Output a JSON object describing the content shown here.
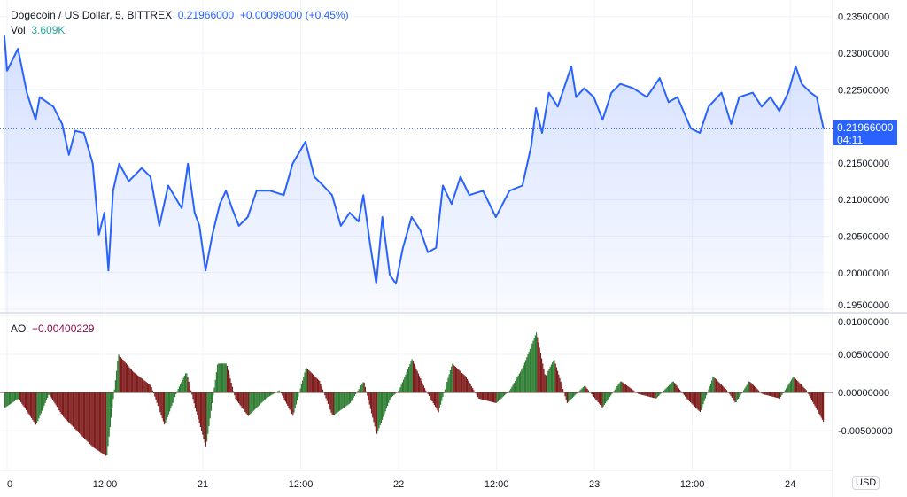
{
  "header": {
    "symbol": "Dogecoin / US Dollar, 5, BITTREX",
    "price": "0.21966000",
    "change": "+0.00098000 (+0.45%)",
    "vol_label": "Vol",
    "vol_value": "3.609K"
  },
  "currency": "USD",
  "last_price_tag": {
    "price": "0.21966000",
    "countdown": "04:11"
  },
  "ao": {
    "label": "AO",
    "value": "−0.00400229"
  },
  "colors": {
    "line": "#2962ff",
    "ao_up": "#2e7d32",
    "ao_down": "#7f1d1d"
  },
  "chart_data": [
    {
      "type": "line",
      "title": "Dogecoin / US Dollar, 5, BITTREX",
      "ylim": [
        0.195,
        0.236
      ],
      "y_ticks": [
        "0.23500000",
        "0.23000000",
        "0.22500000",
        "0.21500000",
        "0.21000000",
        "0.20500000",
        "0.20000000",
        "0.19500000"
      ],
      "x_ticks": [
        "0",
        "12:00",
        "21",
        "12:00",
        "22",
        "12:00",
        "23",
        "12:00",
        "24"
      ],
      "points": [
        [
          "19 23:40",
          0.2324
        ],
        [
          "20 00:00",
          0.2276
        ],
        [
          "20 01:20",
          0.2306
        ],
        [
          "20 02:25",
          0.2246
        ],
        [
          "20 03:30",
          0.2209
        ],
        [
          "20 04:00",
          0.224
        ],
        [
          "20 05:40",
          0.2227
        ],
        [
          "20 06:45",
          0.2203
        ],
        [
          "20 07:35",
          0.2161
        ],
        [
          "20 08:20",
          0.2194
        ],
        [
          "20 09:25",
          0.2191
        ],
        [
          "20 10:30",
          0.2149
        ],
        [
          "20 11:15",
          0.2052
        ],
        [
          "20 11:55",
          0.2082
        ],
        [
          "20 12:25",
          0.2003
        ],
        [
          "20 13:00",
          0.2112
        ],
        [
          "20 13:45",
          0.2149
        ],
        [
          "20 14:55",
          0.2125
        ],
        [
          "20 16:30",
          0.2143
        ],
        [
          "20 17:35",
          0.2131
        ],
        [
          "20 18:40",
          0.2064
        ],
        [
          "20 19:45",
          0.2119
        ],
        [
          "20 21:25",
          0.2088
        ],
        [
          "20 22:10",
          0.2149
        ],
        [
          "20 23:00",
          0.2082
        ],
        [
          "20 23:35",
          0.2064
        ],
        [
          "21 00:20",
          0.2003
        ],
        [
          "21 01:10",
          0.2052
        ],
        [
          "21 02:05",
          0.2094
        ],
        [
          "21 02:50",
          0.2112
        ],
        [
          "21 03:35",
          0.2088
        ],
        [
          "21 04:25",
          0.2064
        ],
        [
          "21 05:30",
          0.2076
        ],
        [
          "21 06:35",
          0.2112
        ],
        [
          "21 08:15",
          0.2112
        ],
        [
          "21 09:55",
          0.2106
        ],
        [
          "21 11:00",
          0.2149
        ],
        [
          "21 12:35",
          0.2179
        ],
        [
          "21 13:40",
          0.2131
        ],
        [
          "21 14:45",
          0.2119
        ],
        [
          "21 15:50",
          0.2106
        ],
        [
          "21 16:55",
          0.2064
        ],
        [
          "21 18:00",
          0.2082
        ],
        [
          "21 19:05",
          0.207
        ],
        [
          "21 19:40",
          0.2106
        ],
        [
          "21 20:30",
          0.204
        ],
        [
          "21 21:15",
          0.1985
        ],
        [
          "21 22:00",
          0.2076
        ],
        [
          "21 22:55",
          0.1997
        ],
        [
          "21 23:40",
          0.1985
        ],
        [
          "22 00:30",
          0.2033
        ],
        [
          "22 01:35",
          0.2076
        ],
        [
          "22 02:40",
          0.2058
        ],
        [
          "22 03:35",
          0.2028
        ],
        [
          "22 04:35",
          0.2034
        ],
        [
          "22 05:25",
          0.2119
        ],
        [
          "22 06:30",
          0.2094
        ],
        [
          "22 07:35",
          0.2131
        ],
        [
          "22 08:40",
          0.2106
        ],
        [
          "22 10:20",
          0.2112
        ],
        [
          "22 11:55",
          0.2076
        ],
        [
          "22 13:35",
          0.2112
        ],
        [
          "22 15:10",
          0.2119
        ],
        [
          "22 16:15",
          0.2173
        ],
        [
          "22 16:50",
          0.2225
        ],
        [
          "22 17:35",
          0.2191
        ],
        [
          "22 18:25",
          0.2246
        ],
        [
          "22 19:30",
          0.2227
        ],
        [
          "22 21:10",
          0.2282
        ],
        [
          "22 21:45",
          0.224
        ],
        [
          "22 22:45",
          0.2252
        ],
        [
          "22 23:55",
          0.224
        ],
        [
          "23 01:00",
          0.2209
        ],
        [
          "23 02:05",
          0.2246
        ],
        [
          "23 03:10",
          0.2258
        ],
        [
          "23 04:45",
          0.2252
        ],
        [
          "23 06:25",
          0.224
        ],
        [
          "23 08:00",
          0.2266
        ],
        [
          "23 09:05",
          0.2233
        ],
        [
          "23 10:10",
          0.224
        ],
        [
          "23 11:50",
          0.2197
        ],
        [
          "23 12:55",
          0.2191
        ],
        [
          "23 14:00",
          0.2227
        ],
        [
          "23 15:35",
          0.2246
        ],
        [
          "23 16:45",
          0.2203
        ],
        [
          "23 17:45",
          0.224
        ],
        [
          "23 19:25",
          0.2246
        ],
        [
          "23 20:30",
          0.2227
        ],
        [
          "23 21:35",
          0.224
        ],
        [
          "23 22:40",
          0.2221
        ],
        [
          "23 23:45",
          0.2246
        ],
        [
          "24 00:40",
          0.2282
        ],
        [
          "24 01:25",
          0.2258
        ],
        [
          "24 02:30",
          0.2246
        ],
        [
          "24 03:15",
          0.224
        ],
        [
          "24 04:05",
          0.21966
        ]
      ]
    },
    {
      "type": "bar",
      "title": "AO",
      "ylim": [
        -0.0095,
        0.0105
      ],
      "y_ticks": [
        "0.01000000",
        "0.00500000",
        "0.00000000",
        "-0.00500000"
      ],
      "points": [
        [
          "19 23:40",
          -0.002
        ],
        [
          "20 01:20",
          -0.0008
        ],
        [
          "20 03:30",
          -0.0043
        ],
        [
          "20 05:05",
          -0.0002
        ],
        [
          "20 06:45",
          -0.0031
        ],
        [
          "20 08:55",
          -0.0055
        ],
        [
          "20 10:30",
          -0.0072
        ],
        [
          "20 12:10",
          -0.0084
        ],
        [
          "20 13:35",
          0.005
        ],
        [
          "20 15:25",
          0.0027
        ],
        [
          "20 17:35",
          0.0009
        ],
        [
          "20 19:15",
          -0.0043
        ],
        [
          "20 20:50",
          0.0003
        ],
        [
          "20 21:55",
          0.0027
        ],
        [
          "20 23:00",
          -0.002
        ],
        [
          "21 00:20",
          -0.0072
        ],
        [
          "21 01:45",
          0.0038
        ],
        [
          "21 02:50",
          0.0038
        ],
        [
          "21 03:55",
          -0.0008
        ],
        [
          "21 05:30",
          -0.0031
        ],
        [
          "21 07:40",
          -0.0008
        ],
        [
          "21 09:20",
          0.0003
        ],
        [
          "21 11:00",
          -0.0031
        ],
        [
          "21 12:35",
          0.0033
        ],
        [
          "21 14:15",
          0.0015
        ],
        [
          "21 15:50",
          -0.0031
        ],
        [
          "21 18:00",
          -0.0014
        ],
        [
          "21 19:40",
          0.0015
        ],
        [
          "21 21:15",
          -0.0055
        ],
        [
          "21 22:55",
          -0.0008
        ],
        [
          "22 00:00",
          0.0003
        ],
        [
          "22 01:35",
          0.0044
        ],
        [
          "22 03:15",
          0.0003
        ],
        [
          "22 04:50",
          -0.0026
        ],
        [
          "22 06:30",
          0.0038
        ],
        [
          "22 08:10",
          0.0021
        ],
        [
          "22 09:45",
          -0.0008
        ],
        [
          "22 11:55",
          -0.0014
        ],
        [
          "22 13:35",
          0.0003
        ],
        [
          "22 15:10",
          0.0033
        ],
        [
          "22 16:50",
          0.0079
        ],
        [
          "22 17:55",
          0.0021
        ],
        [
          "22 19:00",
          0.0044
        ],
        [
          "22 20:35",
          -0.0014
        ],
        [
          "22 22:45",
          0.0009
        ],
        [
          "23 00:55",
          -0.002
        ],
        [
          "23 03:10",
          0.0015
        ],
        [
          "23 05:20",
          -0.0002
        ],
        [
          "23 07:30",
          -0.0008
        ],
        [
          "23 09:35",
          0.0015
        ],
        [
          "23 11:15",
          -0.0008
        ],
        [
          "23 12:55",
          -0.0026
        ],
        [
          "23 14:30",
          0.0021
        ],
        [
          "23 16:10",
          0.0003
        ],
        [
          "23 17:15",
          -0.0014
        ],
        [
          "23 18:55",
          0.0015
        ],
        [
          "23 20:30",
          -0.0002
        ],
        [
          "23 22:40",
          -0.0008
        ],
        [
          "24 00:20",
          0.0021
        ],
        [
          "24 01:55",
          0.0003
        ],
        [
          "24 04:05",
          -0.004
        ]
      ]
    }
  ]
}
